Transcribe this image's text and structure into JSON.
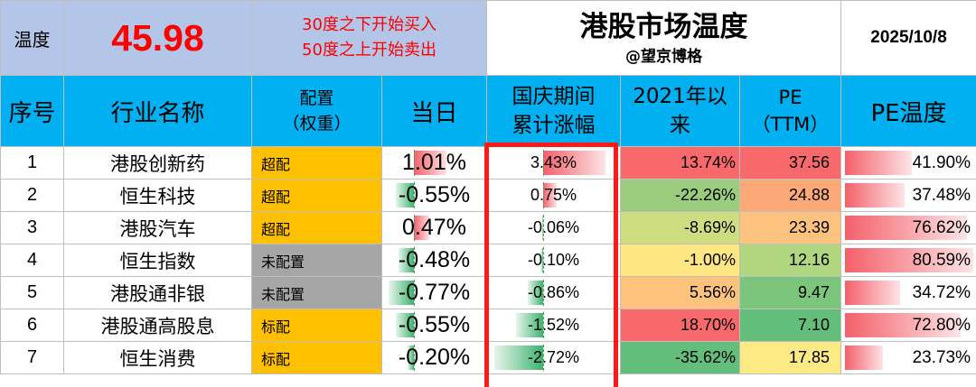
{
  "header": {
    "temp_label": "温度",
    "temp_value": "45.98",
    "rule_line1": "30度之下开始买入",
    "rule_line2": "50度之上开始卖出",
    "title": "港股市场温度",
    "author": "@望京博格",
    "date": "2025/10/8"
  },
  "columns": {
    "index": "序号",
    "name": "行业名称",
    "config_line1": "配置",
    "config_line2": "（权重）",
    "today": "当日",
    "holiday_line1": "国庆期间",
    "holiday_line2": "累计涨幅",
    "since_line1": "2021年以",
    "since_line2": "来",
    "pe_line1": "PE",
    "pe_line2": "（TTM）",
    "pe_temp": "PE温度"
  },
  "colors": {
    "config_orange": "#ffc000",
    "config_gray": "#a6a6a6",
    "header_blue": "#00b0f0",
    "header_top_blue": "#b4c6e7",
    "temp_red": "#ff0000",
    "highlight_red": "#ff1a1a",
    "bar_green": "#3cb371",
    "bar_red": "#f4606a"
  },
  "rows": [
    {
      "index": "1",
      "name": "港股创新药",
      "config": "超配",
      "config_color": "#ffc000",
      "today": "1.01%",
      "today_num": 1.01,
      "holiday": "3.43%",
      "holiday_num": 3.43,
      "since": "13.74%",
      "since_color": "#f8696b",
      "pe": "37.56",
      "pe_color": "#f8696b",
      "pe_temp": "41.90%",
      "pe_temp_num": 41.9
    },
    {
      "index": "2",
      "name": "恒生科技",
      "config": "超配",
      "config_color": "#ffc000",
      "today": "-0.55%",
      "today_num": -0.55,
      "holiday": "0.75%",
      "holiday_num": 0.75,
      "since": "-22.26%",
      "since_color": "#9bcc7e",
      "pe": "24.88",
      "pe_color": "#fba977",
      "pe_temp": "37.48%",
      "pe_temp_num": 37.48
    },
    {
      "index": "3",
      "name": "港股汽车",
      "config": "超配",
      "config_color": "#ffc000",
      "today": "0.47%",
      "today_num": 0.47,
      "holiday": "-0.06%",
      "holiday_num": -0.06,
      "since": "-8.69%",
      "since_color": "#cfdd81",
      "pe": "23.39",
      "pe_color": "#fdc27d",
      "pe_temp": "76.62%",
      "pe_temp_num": 76.62
    },
    {
      "index": "4",
      "name": "恒生指数",
      "config": "未配置",
      "config_color": "#a6a6a6",
      "today": "-0.48%",
      "today_num": -0.48,
      "holiday": "-0.10%",
      "holiday_num": -0.1,
      "since": "-1.00%",
      "since_color": "#fee783",
      "pe": "12.16",
      "pe_color": "#b0d680",
      "pe_temp": "80.59%",
      "pe_temp_num": 80.59
    },
    {
      "index": "5",
      "name": "港股通非银",
      "config": "未配置",
      "config_color": "#a6a6a6",
      "today": "-0.77%",
      "today_num": -0.77,
      "holiday": "-0.86%",
      "holiday_num": -0.86,
      "since": "5.56%",
      "since_color": "#fdc37d",
      "pe": "9.47",
      "pe_color": "#7cc57c",
      "pe_temp": "34.72%",
      "pe_temp_num": 34.72
    },
    {
      "index": "6",
      "name": "港股通高股息",
      "config": "标配",
      "config_color": "#ffc000",
      "today": "-0.55%",
      "today_num": -0.55,
      "holiday": "-1.52%",
      "holiday_num": -1.52,
      "since": "18.70%",
      "since_color": "#f8696b",
      "pe": "7.10",
      "pe_color": "#63be7b",
      "pe_temp": "72.80%",
      "pe_temp_num": 72.8
    },
    {
      "index": "7",
      "name": "恒生消费",
      "config": "标配",
      "config_color": "#ffc000",
      "today": "-0.20%",
      "today_num": -0.2,
      "holiday": "-2.72%",
      "holiday_num": -2.72,
      "since": "-35.62%",
      "since_color": "#63be7b",
      "pe": "17.85",
      "pe_color": "#feea84",
      "pe_temp": "23.73%",
      "pe_temp_num": 23.73
    }
  ]
}
